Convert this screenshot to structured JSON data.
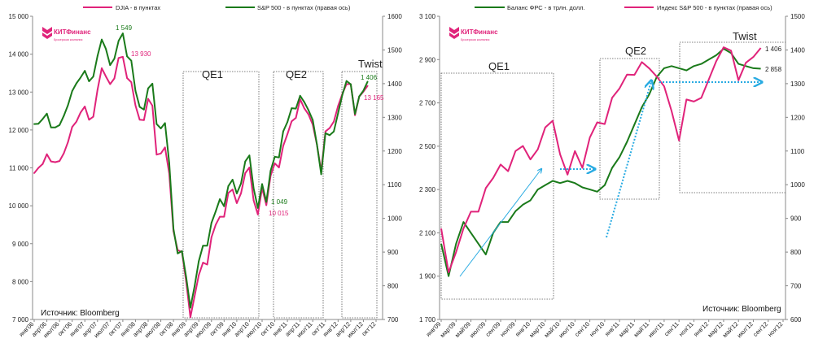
{
  "colors": {
    "pink": "#e0237a",
    "green": "#1a7a1a",
    "arrow": "#29abe2"
  },
  "logo": {
    "name": "КИТФинанс",
    "subtitle": "Брокерская компания"
  },
  "chart_data": [
    {
      "type": "line",
      "title": "",
      "legend": [
        "DJIA - в пунктах",
        "S&P 500 - в пунктах (правая ось)"
      ],
      "legend_placement": "top",
      "x_start": "янв'06",
      "x_ticks": [
        "янв'06",
        "апр'06",
        "июл'06",
        "окт'06",
        "янв'07",
        "апр'07",
        "июл'07",
        "окт'07",
        "янв'08",
        "апр'08",
        "июл'08",
        "окт'08",
        "янв'09",
        "апр'09",
        "июл'09",
        "окт'09",
        "янв'10",
        "апр'10",
        "июл'10",
        "окт'10",
        "янв'11",
        "апр'11",
        "июл'11",
        "окт'11",
        "янв'12",
        "апр'12",
        "июл'12",
        "окт'12"
      ],
      "y_left": {
        "range": [
          7000,
          15000
        ],
        "ticks": [
          "7 000",
          "8 000",
          "9 000",
          "10 000",
          "11 000",
          "12 000",
          "13 000",
          "14 000",
          "15 000"
        ]
      },
      "y_right": {
        "range": [
          700,
          1600
        ],
        "ticks": [
          "700",
          "800",
          "900",
          "1000",
          "1100",
          "1200",
          "1300",
          "1400",
          "1500",
          "1600"
        ]
      },
      "series": [
        {
          "name": "DJIA - в пунктах",
          "axis": "left",
          "color": "#e0237a",
          "values": [
            10860,
            11000,
            11100,
            11360,
            11170,
            11150,
            11180,
            11380,
            11680,
            12080,
            12220,
            12460,
            12620,
            12270,
            12350,
            13060,
            13630,
            13410,
            13210,
            13360,
            13900,
            13930,
            13370,
            13260,
            12650,
            12270,
            12260,
            12820,
            12640,
            11350,
            11380,
            11540,
            10850,
            9330,
            8830,
            8780,
            8000,
            7060,
            7610,
            8170,
            8500,
            8450,
            9170,
            9500,
            9710,
            9710,
            10340,
            10430,
            10070,
            10330,
            10860,
            11010,
            10140,
            9770,
            10470,
            10015,
            10790,
            11120,
            11010,
            11580,
            11890,
            12230,
            12320,
            12810,
            12570,
            12410,
            12140,
            11610,
            10910,
            11960,
            12050,
            12220,
            12630,
            12950,
            13210,
            13210,
            12390,
            12880,
            13010,
            13165
          ]
        },
        {
          "name": "S&P 500 - в пунктах (правая ось)",
          "axis": "right",
          "color": "#1a7a1a",
          "values": [
            1280,
            1281,
            1295,
            1311,
            1270,
            1270,
            1277,
            1304,
            1336,
            1378,
            1401,
            1418,
            1438,
            1407,
            1421,
            1482,
            1531,
            1503,
            1455,
            1474,
            1527,
            1549,
            1481,
            1468,
            1379,
            1331,
            1323,
            1386,
            1400,
            1280,
            1267,
            1283,
            1165,
            969,
            896,
            903,
            826,
            735,
            798,
            873,
            919,
            919,
            987,
            1021,
            1057,
            1036,
            1096,
            1115,
            1074,
            1104,
            1169,
            1187,
            1089,
            1031,
            1102,
            1049,
            1141,
            1183,
            1181,
            1258,
            1286,
            1327,
            1326,
            1364,
            1345,
            1321,
            1292,
            1219,
            1131,
            1253,
            1247,
            1258,
            1312,
            1366,
            1408,
            1398,
            1310,
            1362,
            1379,
            1406
          ]
        }
      ],
      "periods": [
        {
          "label": "QE1",
          "from": "дек'08",
          "to": "июн'10"
        },
        {
          "label": "QE2",
          "from": "окт'10",
          "to": "июн'11"
        },
        {
          "label": "Twist",
          "from": "сен'11",
          "to": "авг'12"
        }
      ],
      "annotations": [
        "1 549",
        "13 930",
        "1 049",
        "10 015",
        "1 406",
        "13 165"
      ],
      "source": "Источник: Bloomberg"
    },
    {
      "type": "line",
      "title": "",
      "legend": [
        "Баланс ФРС - в трлн. долл.",
        "Индекс S&P 500 - в пунктах (правая ось)"
      ],
      "legend_placement": "top",
      "x_start": "янв'09",
      "x_ticks": [
        "янв'09",
        "мар'09",
        "май'09",
        "июл'09",
        "сен'09",
        "ноя'09",
        "янв'10",
        "мар'10",
        "май'10",
        "июл'10",
        "сен'10",
        "ноя'10",
        "янв'11",
        "мар'11",
        "май'11",
        "июл'11",
        "сен'11",
        "ноя'11",
        "янв'12",
        "мар'12",
        "май'12",
        "июл'12",
        "сен'12",
        "ноя'12"
      ],
      "y_left": {
        "range": [
          1700,
          3100
        ],
        "ticks": [
          "1 700",
          "1 900",
          "2 100",
          "2 300",
          "2 500",
          "2 700",
          "2 900",
          "3 100"
        ]
      },
      "y_right": {
        "range": [
          600,
          1500
        ],
        "ticks": [
          "600",
          "700",
          "800",
          "900",
          "1000",
          "1100",
          "1200",
          "1300",
          "1400",
          "1500"
        ]
      },
      "series": [
        {
          "name": "Баланс ФРС - в трлн. долл.",
          "axis": "left",
          "color": "#1a7a1a",
          "values": [
            2050,
            1900,
            2050,
            2150,
            2100,
            2050,
            2000,
            2100,
            2150,
            2150,
            2200,
            2230,
            2250,
            2300,
            2320,
            2340,
            2330,
            2340,
            2330,
            2310,
            2300,
            2290,
            2320,
            2400,
            2450,
            2520,
            2600,
            2680,
            2740,
            2820,
            2860,
            2870,
            2860,
            2850,
            2870,
            2880,
            2900,
            2920,
            2950,
            2930,
            2880,
            2870,
            2860,
            2858
          ]
        },
        {
          "name": "Индекс S&P 500 - в пунктах (правая ось)",
          "axis": "right",
          "color": "#e0237a",
          "values": [
            870,
            740,
            800,
            870,
            920,
            920,
            990,
            1020,
            1060,
            1040,
            1100,
            1115,
            1075,
            1105,
            1170,
            1190,
            1090,
            1030,
            1100,
            1050,
            1140,
            1185,
            1180,
            1258,
            1286,
            1327,
            1326,
            1364,
            1345,
            1321,
            1292,
            1219,
            1131,
            1253,
            1247,
            1258,
            1312,
            1366,
            1408,
            1398,
            1310,
            1362,
            1379,
            1406
          ]
        }
      ],
      "periods": [
        {
          "label": "QE1",
          "from": "янв'09",
          "to": "мар'10"
        },
        {
          "label": "QE2",
          "from": "ноя'10",
          "to": "июн'11"
        },
        {
          "label": "Twist",
          "from": "сен'11",
          "to": "ноя'12"
        }
      ],
      "annotations": [
        "1 406",
        "2 858"
      ],
      "source": "Источник: Bloomberg"
    }
  ]
}
